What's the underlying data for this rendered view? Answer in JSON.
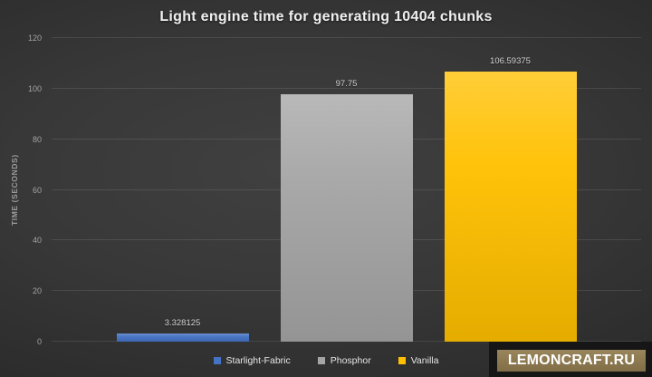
{
  "chart_data": {
    "type": "bar",
    "title": "Light engine time for generating 10404 chunks",
    "xlabel": "",
    "ylabel": "TIME (SECONDS)",
    "categories": [
      "Starlight-Fabric",
      "Phosphor",
      "Vanilla"
    ],
    "values": [
      3.328125,
      97.75,
      106.59375
    ],
    "value_labels": [
      "3.328125",
      "97.75",
      "106.59375"
    ],
    "colors": [
      "#4472c4",
      "#a5a5a5",
      "#ffc000"
    ],
    "ylim": [
      0,
      120
    ],
    "yticks": [
      0,
      20,
      40,
      60,
      80,
      100,
      120
    ],
    "grid": true,
    "legend_position": "bottom",
    "legend": [
      {
        "label": "Starlight-Fabric",
        "color": "#4472c4"
      },
      {
        "label": "Phosphor",
        "color": "#a5a5a5"
      },
      {
        "label": "Vanilla",
        "color": "#ffc000"
      }
    ],
    "background": "#333333"
  },
  "watermark": {
    "text": "LEMONCRAFT.RU",
    "box_color": "#8e7a50",
    "text_color": "#ffffff"
  }
}
